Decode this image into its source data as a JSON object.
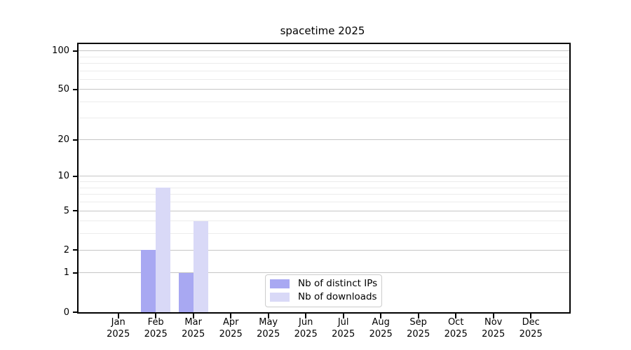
{
  "title": "spacetime 2025",
  "colors": {
    "distinct_ips": "#a8a8f2",
    "downloads": "#d9d9f7",
    "grid_major": "#c6c6c6",
    "grid_minor": "#ececec",
    "axis": "#000000",
    "legend_border": "#cccccc",
    "background": "#ffffff",
    "text": "#000000"
  },
  "chart_data": {
    "type": "bar",
    "title": "spacetime 2025",
    "categories": [
      "Jan",
      "Feb",
      "Mar",
      "Apr",
      "May",
      "Jun",
      "Jul",
      "Aug",
      "Sep",
      "Oct",
      "Nov",
      "Dec"
    ],
    "x_tick_second_line": "2025",
    "series": [
      {
        "name": "Nb of distinct IPs",
        "color": "#a8a8f2",
        "values": [
          0,
          2,
          1,
          0,
          0,
          0,
          0,
          0,
          0,
          0,
          0,
          0
        ]
      },
      {
        "name": "Nb of downloads",
        "color": "#d9d9f7",
        "values": [
          0,
          8,
          4,
          0,
          0,
          0,
          0,
          0,
          0,
          0,
          0,
          0
        ]
      }
    ],
    "xlabel": "",
    "ylabel": "",
    "y_axis": {
      "scale": "log1p",
      "major_ticks": [
        0,
        1,
        2,
        5,
        10,
        20,
        50,
        100
      ],
      "minor_gridlines": [
        3,
        4,
        6,
        7,
        8,
        9,
        30,
        40,
        60,
        70,
        80,
        90
      ],
      "top_value": 115
    },
    "grid": true,
    "legend": {
      "entries": [
        "Nb of distinct IPs",
        "Nb of downloads"
      ],
      "position": "lower center"
    }
  }
}
